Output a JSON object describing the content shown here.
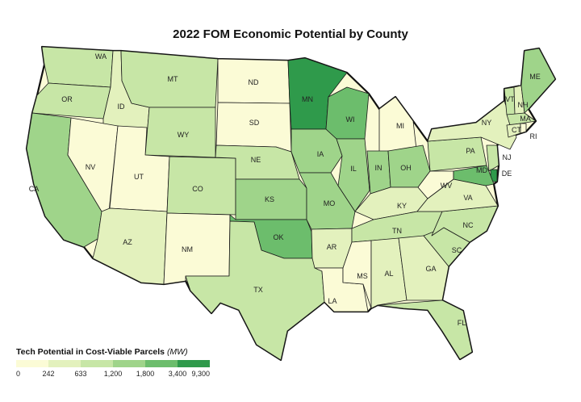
{
  "title": "2022 FOM Economic Potential by County",
  "legend": {
    "title": "Tech Potential in Cost-Viable Parcels",
    "unit": "(MW)",
    "ticks": [
      "0",
      "242",
      "633",
      "1,200",
      "1,800",
      "3,400",
      "9,300"
    ],
    "colors": [
      "#fbfbd6",
      "#e3f1bd",
      "#c7e6a6",
      "#9fd48a",
      "#6cbd6c",
      "#2f9a4b",
      "#006b2e"
    ]
  },
  "states": [
    {
      "abbr": "WA",
      "level": 2
    },
    {
      "abbr": "OR",
      "level": 2
    },
    {
      "abbr": "CA",
      "level": 3
    },
    {
      "abbr": "ID",
      "level": 1
    },
    {
      "abbr": "NV",
      "level": 0
    },
    {
      "abbr": "MT",
      "level": 2
    },
    {
      "abbr": "WY",
      "level": 2
    },
    {
      "abbr": "UT",
      "level": 0
    },
    {
      "abbr": "AZ",
      "level": 1
    },
    {
      "abbr": "CO",
      "level": 2
    },
    {
      "abbr": "NM",
      "level": 0
    },
    {
      "abbr": "ND",
      "level": 0
    },
    {
      "abbr": "SD",
      "level": 0
    },
    {
      "abbr": "NE",
      "level": 2
    },
    {
      "abbr": "KS",
      "level": 3
    },
    {
      "abbr": "OK",
      "level": 4
    },
    {
      "abbr": "TX",
      "level": 2
    },
    {
      "abbr": "MN",
      "level": 5
    },
    {
      "abbr": "IA",
      "level": 3
    },
    {
      "abbr": "MO",
      "level": 3
    },
    {
      "abbr": "AR",
      "level": 1
    },
    {
      "abbr": "LA",
      "level": 0
    },
    {
      "abbr": "WI",
      "level": 4
    },
    {
      "abbr": "IL",
      "level": 3
    },
    {
      "abbr": "MI",
      "level": 0
    },
    {
      "abbr": "IN",
      "level": 3
    },
    {
      "abbr": "OH",
      "level": 3
    },
    {
      "abbr": "KY",
      "level": 1
    },
    {
      "abbr": "TN",
      "level": 2
    },
    {
      "abbr": "MS",
      "level": 0
    },
    {
      "abbr": "AL",
      "level": 1
    },
    {
      "abbr": "GA",
      "level": 1
    },
    {
      "abbr": "FL",
      "level": 2
    },
    {
      "abbr": "SC",
      "level": 2
    },
    {
      "abbr": "NC",
      "level": 2
    },
    {
      "abbr": "VA",
      "level": 1
    },
    {
      "abbr": "WV",
      "level": 0
    },
    {
      "abbr": "PA",
      "level": 2
    },
    {
      "abbr": "NY",
      "level": 1
    },
    {
      "abbr": "VT",
      "level": 2
    },
    {
      "abbr": "NH",
      "level": 1
    },
    {
      "abbr": "ME",
      "level": 3
    },
    {
      "abbr": "MA",
      "level": 2
    },
    {
      "abbr": "CT",
      "level": 1
    },
    {
      "abbr": "RI",
      "level": 0
    },
    {
      "abbr": "NJ",
      "level": 2
    },
    {
      "abbr": "DE",
      "level": 5
    },
    {
      "abbr": "MD",
      "level": 4
    }
  ]
}
